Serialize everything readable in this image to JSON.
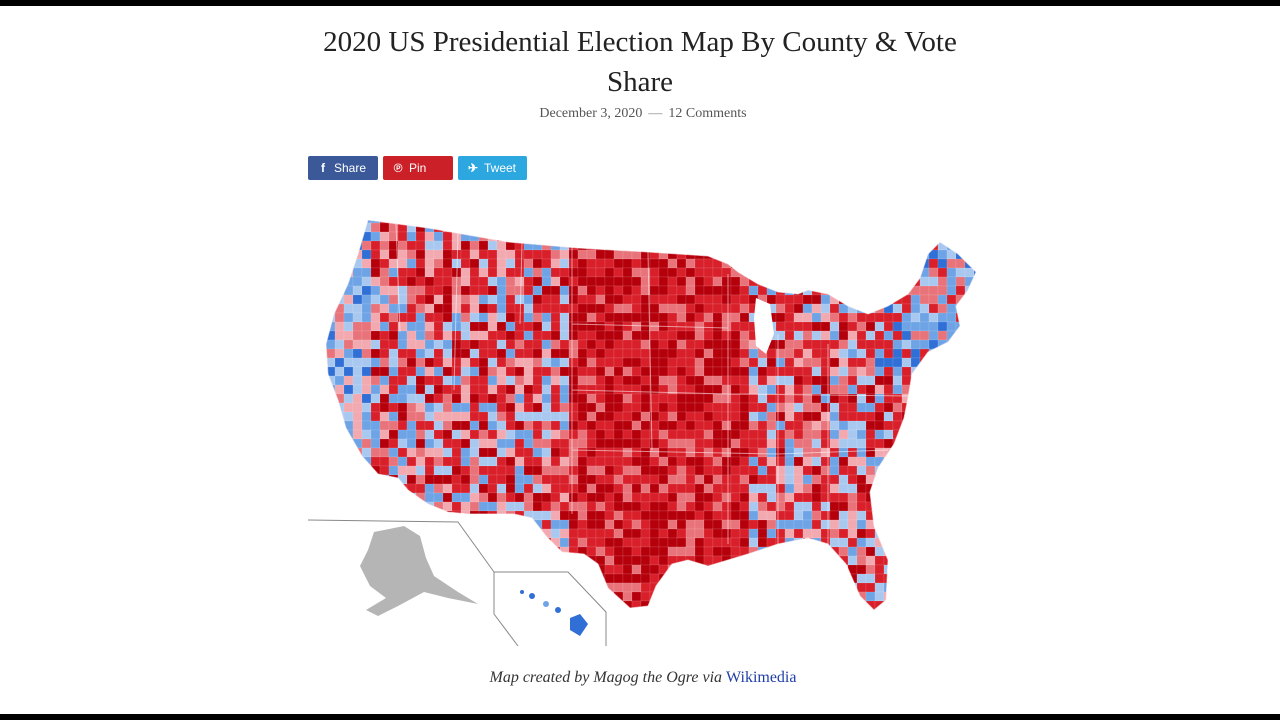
{
  "article": {
    "title": "2020 US Presidential Election Map By County & Vote Share",
    "date": "December 3, 2020",
    "separator": "—",
    "comments": "12 Comments"
  },
  "share": {
    "facebook": {
      "label": "Share",
      "icon": "facebook-icon",
      "color": "#3b5998"
    },
    "pinterest": {
      "label": "Pin",
      "icon": "pinterest-icon",
      "color": "#cb2027"
    },
    "twitter": {
      "label": "Tweet",
      "icon": "twitter-icon",
      "color": "#2ca7e0"
    }
  },
  "map": {
    "colors": {
      "dark_red": "#b5000c",
      "red": "#d81f2a",
      "light_red": "#e8737a",
      "pale_red": "#f2a9b0",
      "pale_blue": "#a9c8f0",
      "light_blue": "#6ea3e6",
      "blue": "#2f6fd6",
      "dark_blue": "#1a4fb0",
      "alaska_gray": "#b5b5b5"
    }
  },
  "caption": {
    "prefix": "Map created by Magog the Ogre via",
    "link": "Wikimedia"
  }
}
